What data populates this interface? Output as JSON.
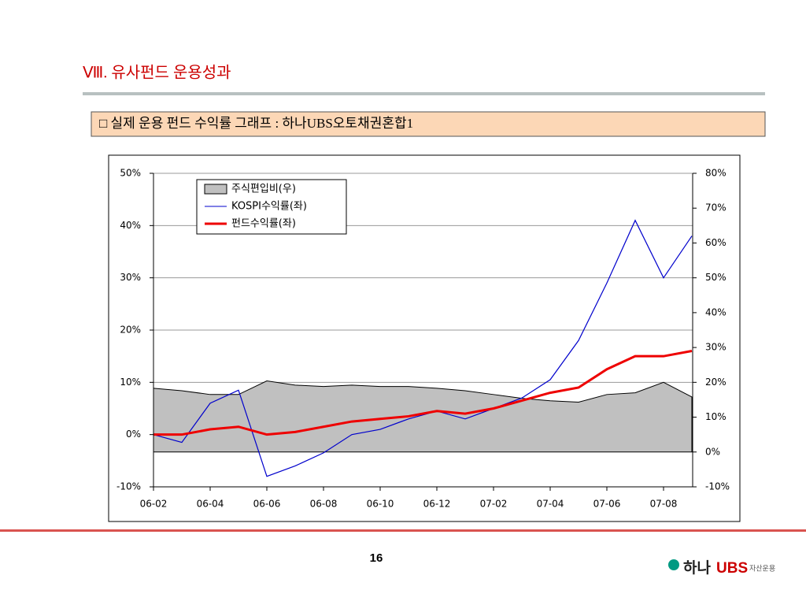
{
  "header": {
    "title": "Ⅷ. 유사펀드 운용성과",
    "subtitle": "□ 실제 운용 펀드 수익률 그래프 : 하나UBS오토채권혼합1"
  },
  "chart_data": {
    "type": "line",
    "categories": [
      "06-02",
      null,
      "06-04",
      null,
      "06-06",
      null,
      "06-08",
      null,
      "06-10",
      null,
      "06-12",
      null,
      "07-02",
      null,
      "07-04",
      null,
      "07-06",
      null,
      "07-08",
      null
    ],
    "ylim": [
      -10,
      50
    ],
    "yticks": [
      {
        "value": -10,
        "label": "-10%"
      },
      {
        "value": 0,
        "label": "0%"
      },
      {
        "value": 10,
        "label": "10%"
      },
      {
        "value": 20,
        "label": "20%"
      },
      {
        "value": 30,
        "label": "30%"
      },
      {
        "value": 40,
        "label": "40%"
      },
      {
        "value": 50,
        "label": "50%"
      }
    ],
    "y2lim": [
      -10,
      80
    ],
    "y2ticks": [
      {
        "value": -10,
        "label": "-10%"
      },
      {
        "value": 0,
        "label": "0%"
      },
      {
        "value": 10,
        "label": "10%"
      },
      {
        "value": 20,
        "label": "20%"
      },
      {
        "value": 30,
        "label": "30%"
      },
      {
        "value": 40,
        "label": "40%"
      },
      {
        "value": 50,
        "label": "50%"
      },
      {
        "value": 60,
        "label": "60%"
      },
      {
        "value": 70,
        "label": "70%"
      },
      {
        "value": 80,
        "label": "80%"
      }
    ],
    "grid": true,
    "legend": "upper left",
    "series": [
      {
        "name": "주식편입비(우)",
        "type": "area",
        "axis": "y2",
        "color": "#c0c0c0",
        "values": [
          18.3,
          17.6,
          16.5,
          16.5,
          20.4,
          19.2,
          18.8,
          19.2,
          18.8,
          18.8,
          18.3,
          17.6,
          16.5,
          15.4,
          14.7,
          14.3,
          16.5,
          17,
          20,
          15.8
        ]
      },
      {
        "name": "KOSPI수익률(좌)",
        "type": "line",
        "color": "#0000cc",
        "values": [
          0,
          -1.5,
          6,
          8.5,
          -8,
          -6,
          -3.5,
          0,
          1,
          3,
          4.5,
          3,
          5,
          7,
          10.5,
          18,
          29,
          41,
          30,
          38
        ]
      },
      {
        "name": "펀드수익률(좌)",
        "type": "line",
        "color": "#ee0000",
        "values": [
          0,
          0,
          1,
          1.5,
          0,
          0.5,
          1.5,
          2.5,
          3,
          3.5,
          4.5,
          4,
          5,
          6.5,
          8,
          9,
          12.5,
          15,
          15,
          16
        ]
      }
    ]
  },
  "footer": {
    "page": "16",
    "logo_name": "하나",
    "logo_brand": "UBS",
    "logo_sub": "자산운용"
  }
}
